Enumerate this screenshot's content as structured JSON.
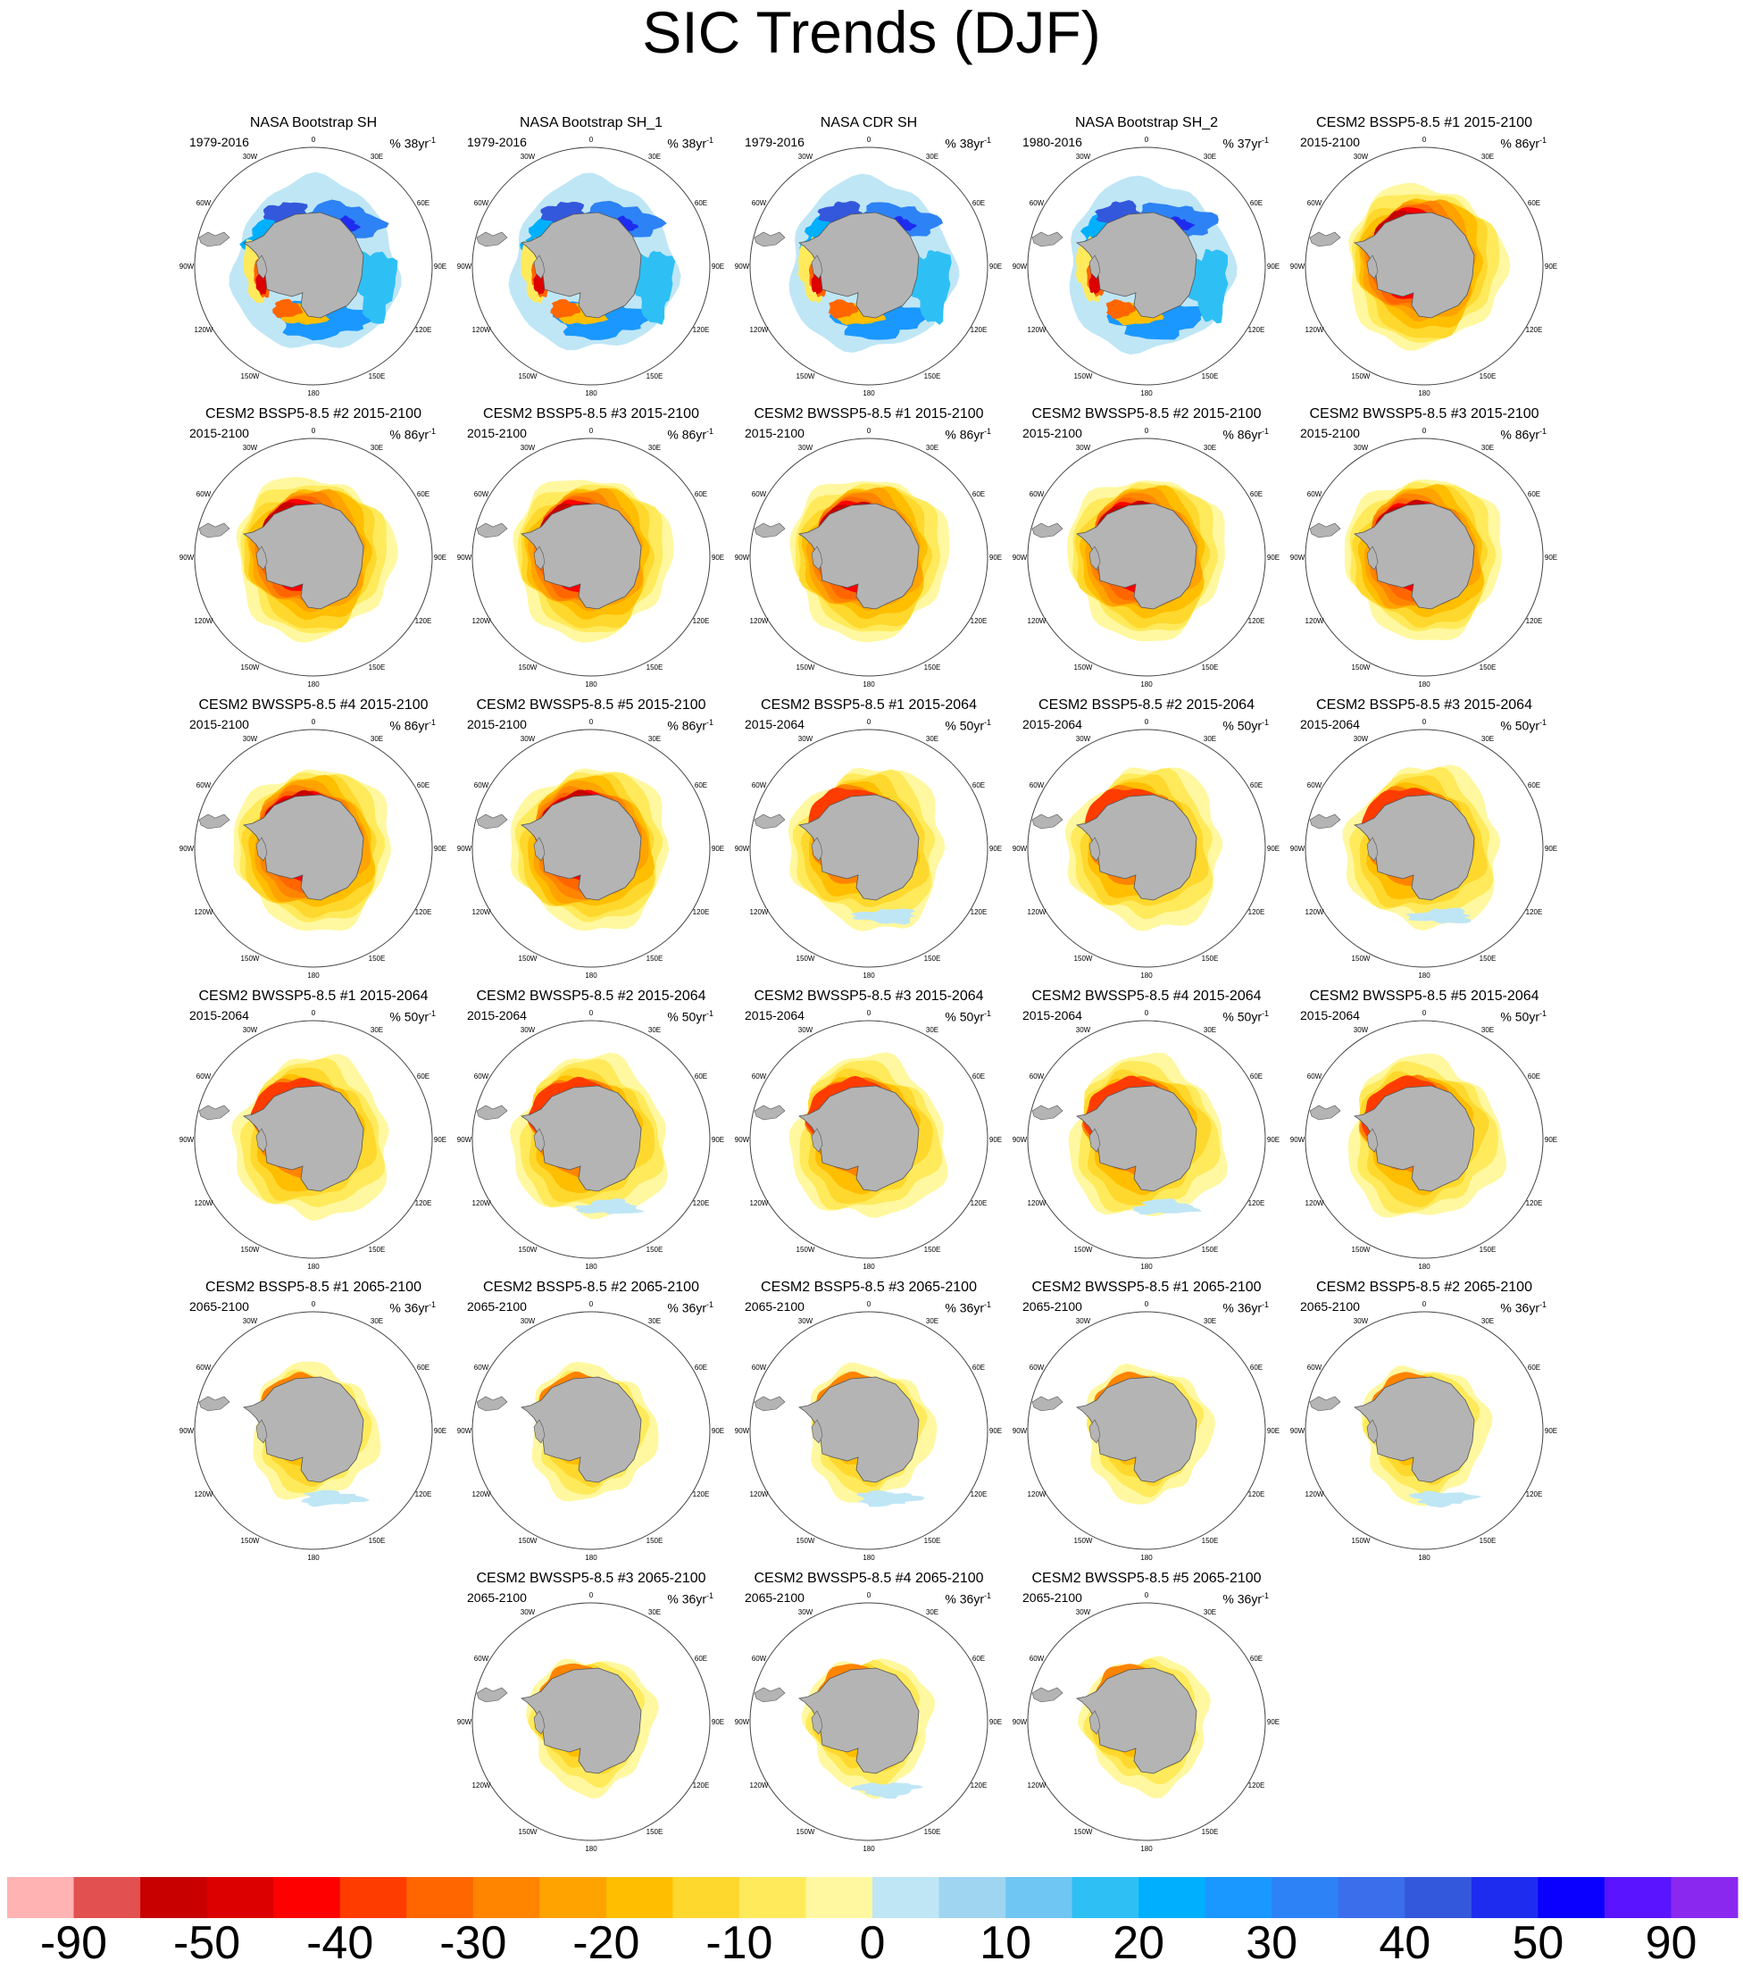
{
  "figure": {
    "title": "SIC Trends (DJF)",
    "units_prefix": "% ",
    "units_suffix": "yr",
    "units_exponent": "-1",
    "lon_labels": [
      "0",
      "30E",
      "60E",
      "90E",
      "120E",
      "150E",
      "180",
      "150W",
      "120W",
      "90W",
      "60W",
      "30W"
    ]
  },
  "panels": [
    {
      "title": "NASA Bootstrap SH",
      "period": "1979-2016",
      "scale": "38",
      "pattern": "obs"
    },
    {
      "title": "NASA Bootstrap SH_1",
      "period": "1979-2016",
      "scale": "38",
      "pattern": "obs"
    },
    {
      "title": "NASA CDR SH",
      "period": "1979-2016",
      "scale": "38",
      "pattern": "obs"
    },
    {
      "title": "NASA Bootstrap SH_2",
      "period": "1980-2016",
      "scale": "37",
      "pattern": "obs"
    },
    {
      "title": "CESM2 BSSP5-8.5 #1 2015-2100",
      "period": "2015-2100",
      "scale": "86",
      "pattern": "strong"
    },
    {
      "title": "CESM2 BSSP5-8.5 #2 2015-2100",
      "period": "2015-2100",
      "scale": "86",
      "pattern": "strong"
    },
    {
      "title": "CESM2 BSSP5-8.5 #3 2015-2100",
      "period": "2015-2100",
      "scale": "86",
      "pattern": "strong"
    },
    {
      "title": "CESM2 BWSSP5-8.5 #1 2015-2100",
      "period": "2015-2100",
      "scale": "86",
      "pattern": "strong"
    },
    {
      "title": "CESM2 BWSSP5-8.5 #2 2015-2100",
      "period": "2015-2100",
      "scale": "86",
      "pattern": "strong"
    },
    {
      "title": "CESM2 BWSSP5-8.5 #3 2015-2100",
      "period": "2015-2100",
      "scale": "86",
      "pattern": "strong"
    },
    {
      "title": "CESM2 BWSSP5-8.5 #4 2015-2100",
      "period": "2015-2100",
      "scale": "86",
      "pattern": "strong"
    },
    {
      "title": "CESM2 BWSSP5-8.5 #5 2015-2100",
      "period": "2015-2100",
      "scale": "86",
      "pattern": "strong"
    },
    {
      "title": "CESM2 BSSP5-8.5 #1 2015-2064",
      "period": "2015-2064",
      "scale": "50",
      "pattern": "medium"
    },
    {
      "title": "CESM2 BSSP5-8.5 #2 2015-2064",
      "period": "2015-2064",
      "scale": "50",
      "pattern": "medium"
    },
    {
      "title": "CESM2 BSSP5-8.5 #3 2015-2064",
      "period": "2015-2064",
      "scale": "50",
      "pattern": "medium"
    },
    {
      "title": "CESM2 BWSSP5-8.5 #1 2015-2064",
      "period": "2015-2064",
      "scale": "50",
      "pattern": "medium"
    },
    {
      "title": "CESM2 BWSSP5-8.5 #2 2015-2064",
      "period": "2015-2064",
      "scale": "50",
      "pattern": "medium"
    },
    {
      "title": "CESM2 BWSSP5-8.5 #3 2015-2064",
      "period": "2015-2064",
      "scale": "50",
      "pattern": "medium"
    },
    {
      "title": "CESM2 BWSSP5-8.5 #4 2015-2064",
      "period": "2015-2064",
      "scale": "50",
      "pattern": "medium"
    },
    {
      "title": "CESM2 BWSSP5-8.5 #5 2015-2064",
      "period": "2015-2064",
      "scale": "50",
      "pattern": "medium"
    },
    {
      "title": "CESM2 BSSP5-8.5 #1 2065-2100",
      "period": "2065-2100",
      "scale": "36",
      "pattern": "weak"
    },
    {
      "title": "CESM2 BSSP5-8.5 #2 2065-2100",
      "period": "2065-2100",
      "scale": "36",
      "pattern": "weak"
    },
    {
      "title": "CESM2 BSSP5-8.5 #3 2065-2100",
      "period": "2065-2100",
      "scale": "36",
      "pattern": "weak"
    },
    {
      "title": "CESM2 BWSSP5-8.5 #1 2065-2100",
      "period": "2065-2100",
      "scale": "36",
      "pattern": "weak"
    },
    {
      "title": "CESM2 BSSP5-8.5 #2 2065-2100",
      "period": "2065-2100",
      "scale": "36",
      "pattern": "weak"
    },
    {
      "title": "CESM2 BWSSP5-8.5 #3 2065-2100",
      "period": "2065-2100",
      "scale": "36",
      "pattern": "weak"
    },
    {
      "title": "CESM2 BWSSP5-8.5 #4 2065-2100",
      "period": "2065-2100",
      "scale": "36",
      "pattern": "weak"
    },
    {
      "title": "CESM2 BWSSP5-8.5 #5 2065-2100",
      "period": "2065-2100",
      "scale": "36",
      "pattern": "weak"
    }
  ],
  "colorbar": {
    "colors": [
      "#ffb3b3",
      "#e35050",
      "#c80000",
      "#dc0000",
      "#ff0000",
      "#ff3c00",
      "#ff6600",
      "#ff8400",
      "#ffa300",
      "#ffbe00",
      "#ffd82e",
      "#ffea5c",
      "#fff8a0",
      "#bfe6f5",
      "#9fd5f0",
      "#70c6f2",
      "#2ec0f5",
      "#00b0ff",
      "#1a98ff",
      "#2d82f5",
      "#3a6eea",
      "#3358dc",
      "#1e2cf0",
      "#0a00ff",
      "#5a14ff",
      "#8a28f0"
    ],
    "labels": [
      "-90",
      "-50",
      "-40",
      "-30",
      "-20",
      "-10",
      "0",
      "10",
      "20",
      "30",
      "40",
      "50",
      "90"
    ]
  }
}
